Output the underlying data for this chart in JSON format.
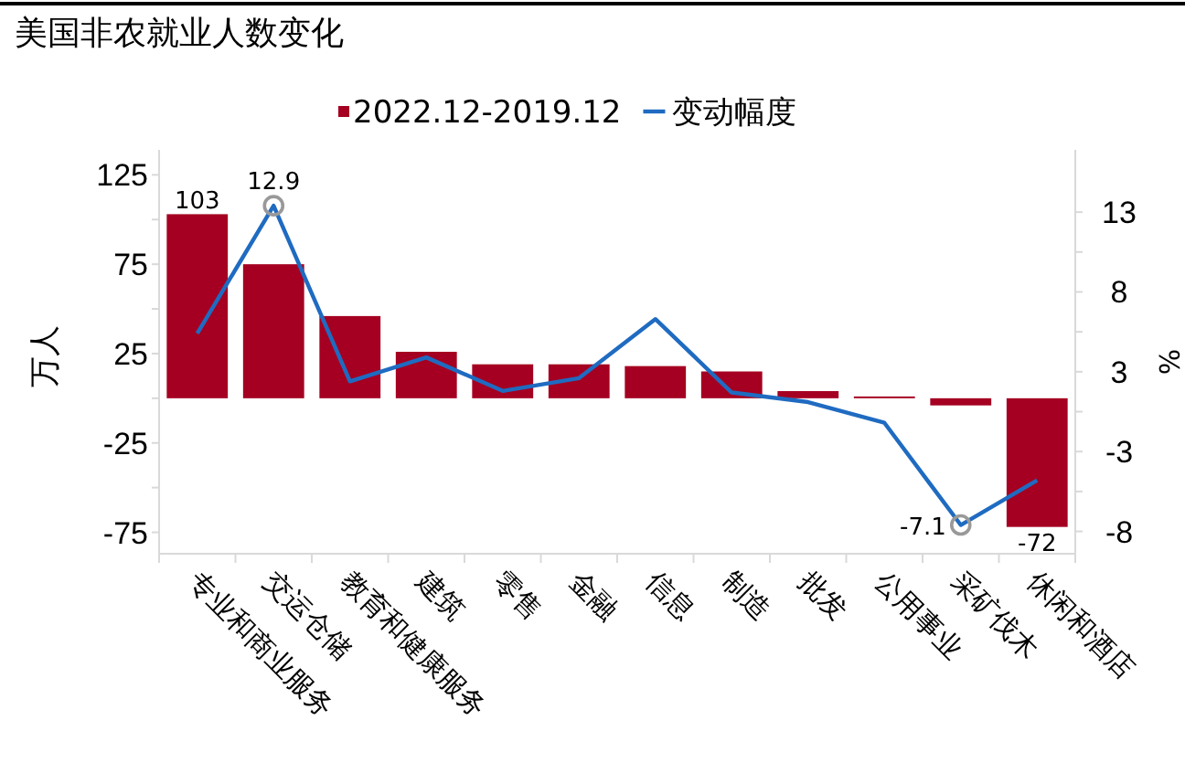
{
  "chart_data": {
    "type": "bar",
    "title": "美国非农就业人数变化",
    "ylabel": "万人",
    "y2label": "%",
    "categories": [
      "专业和商业服务",
      "交运仓储",
      "教育和健康服务",
      "建筑",
      "零售",
      "金融",
      "信息",
      "制造",
      "批发",
      "公用事业",
      "采矿伐木",
      "休闲和酒店"
    ],
    "series": [
      {
        "name": "2022.12-2019.12",
        "color": "#a50021",
        "values": [
          103,
          75,
          46,
          26,
          19,
          19,
          18,
          15,
          4,
          1,
          -4,
          -72
        ],
        "value_labels": [
          "103",
          null,
          null,
          null,
          null,
          null,
          null,
          null,
          null,
          null,
          null,
          "-72"
        ]
      },
      {
        "name": "变动幅度",
        "type": "line",
        "axis": "y2",
        "color": "#1f6bc1",
        "values": [
          4.9,
          12.9,
          1.9,
          3.4,
          1.3,
          2.1,
          5.8,
          1.2,
          0.6,
          -0.7,
          -7.1,
          -4.3
        ],
        "value_labels": [
          null,
          "12.9",
          null,
          null,
          null,
          null,
          null,
          null,
          null,
          null,
          "-7.1",
          null
        ]
      }
    ],
    "ylim": [
      -87,
      139
    ],
    "yticks": [
      -75,
      -25,
      25,
      75,
      125
    ],
    "y2lim": [
      -8.9,
      16.4
    ],
    "y2ticks": [
      {
        "value": -7.5,
        "label": "-8"
      },
      {
        "value": -2.5,
        "label": "-3"
      },
      {
        "value": 2.5,
        "label": "3"
      },
      {
        "value": 7.5,
        "label": "8"
      },
      {
        "value": 12.5,
        "label": "13"
      }
    ],
    "legend": "top",
    "line_style": "solid"
  }
}
